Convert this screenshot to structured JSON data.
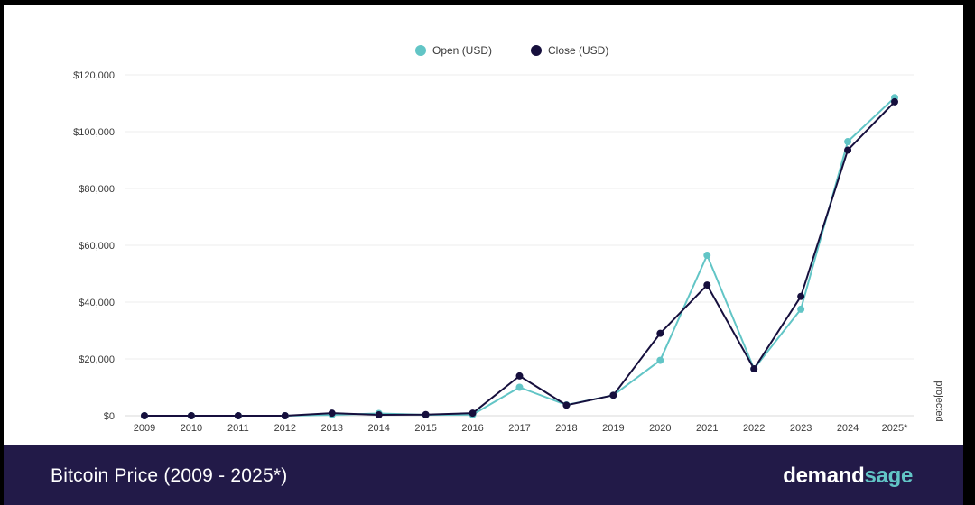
{
  "chart_data": {
    "type": "line",
    "x": [
      "2009",
      "2010",
      "2011",
      "2012",
      "2013",
      "2014",
      "2015",
      "2016",
      "2017",
      "2018",
      "2019",
      "2020",
      "2021",
      "2022",
      "2023",
      "2024",
      "2025*"
    ],
    "series": [
      {
        "name": "Open (USD)",
        "color": "#62c5c6",
        "values": [
          0,
          0,
          0,
          0,
          300,
          800,
          300,
          400,
          10000,
          3800,
          7200,
          19500,
          56500,
          16500,
          37500,
          96500,
          112000
        ]
      },
      {
        "name": "Close (USD)",
        "color": "#160f3d",
        "values": [
          0,
          0,
          0,
          0,
          900,
          300,
          400,
          900,
          14000,
          3700,
          7200,
          29000,
          46000,
          16500,
          42000,
          93500,
          110500
        ]
      }
    ],
    "ylim": [
      0,
      120000
    ],
    "yticks": [
      0,
      20000,
      40000,
      60000,
      80000,
      100000,
      120000
    ],
    "ytick_labels": [
      "$0",
      "$20,000",
      "$40,000",
      "$60,000",
      "$80,000",
      "$100,000",
      "$120,000"
    ],
    "legend_placement": "top-center",
    "grid": true,
    "side_note": "projected"
  },
  "footer": {
    "title": "Bitcoin Price (2009 - 2025*)",
    "brand_part1": "demand",
    "brand_part2": "sage"
  }
}
